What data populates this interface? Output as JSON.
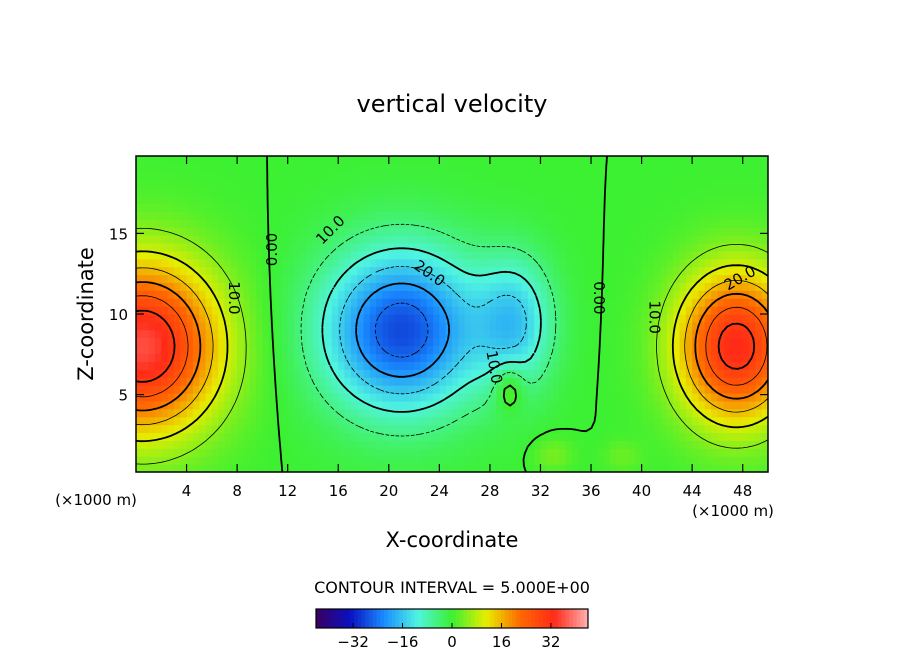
{
  "chart_data": {
    "type": "heatmap",
    "subtype": "filled-contour",
    "title": "vertical velocity",
    "xlabel": "X-coordinate",
    "ylabel": "Z-coordinate",
    "x_unit_label": "(×1000 m)",
    "x_unit_label_right": "(×1000 m)",
    "xlim": [
      0,
      50
    ],
    "ylim": [
      0.2,
      19.8
    ],
    "x_ticks": [
      4,
      8,
      12,
      16,
      20,
      24,
      28,
      32,
      36,
      40,
      44,
      48
    ],
    "y_ticks": [
      5,
      10,
      15
    ],
    "contour_interval_text": "CONTOUR INTERVAL = 5.000E+00",
    "contour_labels": [
      {
        "text": "0.00",
        "x": 10.8,
        "z": 14.0,
        "rotate": -90
      },
      {
        "text": "10.0",
        "x": 7.7,
        "z": 11.0,
        "rotate": 90
      },
      {
        "text": "10.0",
        "x": 15.4,
        "z": 15.2,
        "rotate": -45
      },
      {
        "text": "20.0",
        "x": 23.2,
        "z": 12.5,
        "rotate": 35
      },
      {
        "text": "10.0",
        "x": 28.3,
        "z": 6.7,
        "rotate": 80
      },
      {
        "text": "0.00",
        "x": 36.6,
        "z": 11.0,
        "rotate": 90
      },
      {
        "text": "10.0",
        "x": 41.0,
        "z": 9.8,
        "rotate": 90
      },
      {
        "text": "20.0",
        "x": 47.8,
        "z": 12.2,
        "rotate": -30
      }
    ],
    "colorbar": {
      "ticks": [
        "−32",
        "−16",
        "0",
        "16",
        "32"
      ],
      "tick_values": [
        -32,
        -16,
        0,
        16,
        32
      ],
      "range": [
        -44,
        44
      ],
      "colormap": "rainbow",
      "colors": [
        "#3a0060",
        "#0a10c0",
        "#1a8cff",
        "#50f5e0",
        "#3cf032",
        "#e6ee00",
        "#ff6a00",
        "#ff2a18",
        "#ffb0b0"
      ]
    },
    "features": [
      {
        "kind": "updraft",
        "x": 0.5,
        "z": 8.0,
        "peak": 36
      },
      {
        "kind": "downdraft",
        "x": 21.0,
        "z": 9.0,
        "peak": -28
      },
      {
        "kind": "updraft",
        "x": 47.5,
        "z": 8.0,
        "peak": 33
      }
    ]
  }
}
